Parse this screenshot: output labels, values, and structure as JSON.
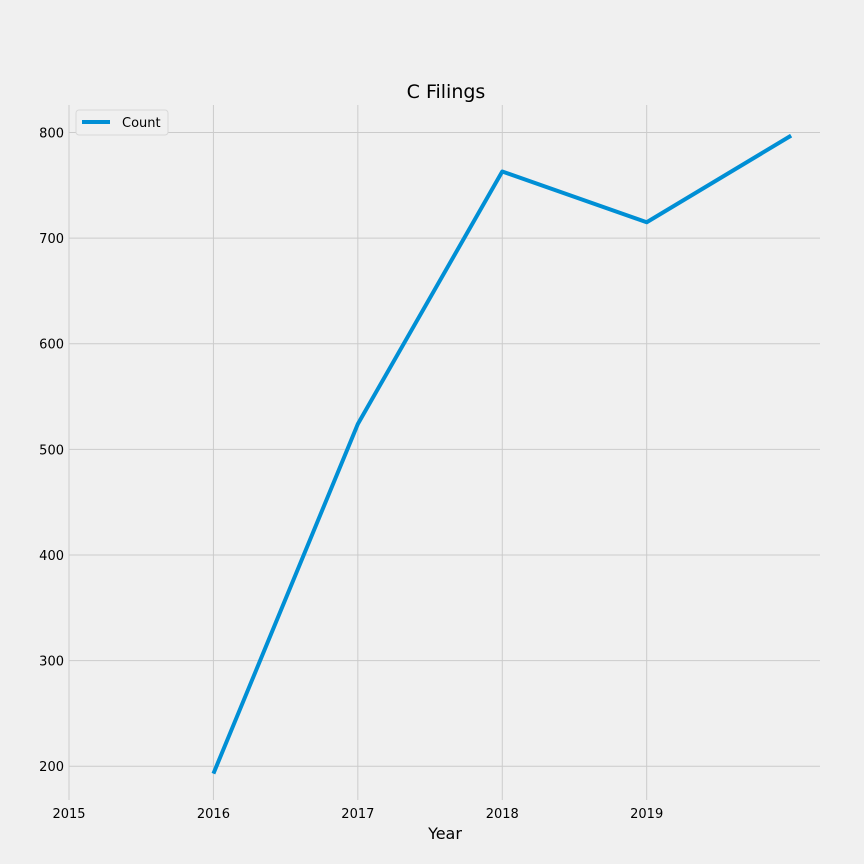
{
  "chart_data": {
    "type": "line",
    "title": "C Filings",
    "xlabel": "Year",
    "ylabel": "",
    "x": [
      2016,
      2017,
      2018,
      2019,
      2020
    ],
    "series": [
      {
        "name": "Count",
        "values": [
          193,
          524,
          763,
          715,
          797
        ],
        "color": "#008fd5"
      }
    ],
    "xlim": [
      2015,
      2020.2
    ],
    "ylim": [
      168,
      826
    ],
    "xticks": [
      2015,
      2016,
      2017,
      2018,
      2019
    ],
    "xtick_labels": [
      "2015",
      "2016",
      "2017",
      "2018",
      "2019"
    ],
    "yticks": [
      200,
      300,
      400,
      500,
      600,
      700,
      800
    ],
    "ytick_labels": [
      "200",
      "300",
      "400",
      "500",
      "600",
      "700",
      "800"
    ],
    "grid": true,
    "legend_position": "top-left",
    "background": "#f0f0f0",
    "grid_color": "#cbcbcb"
  }
}
